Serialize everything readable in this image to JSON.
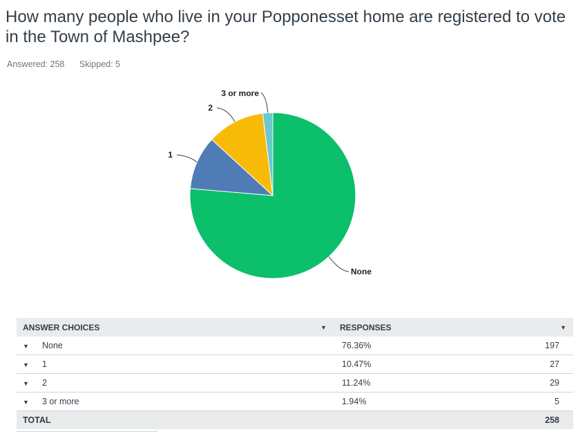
{
  "question": {
    "title": "How many people who live in your Popponesset home are registered to vote in the Town of Mashpee?",
    "answered_label": "Answered: 258",
    "skipped_label": "Skipped: 5"
  },
  "table": {
    "col_choices": "ANSWER CHOICES",
    "col_responses": "RESPONSES",
    "rows": [
      {
        "choice": "None",
        "percent": "76.36%",
        "count": "197"
      },
      {
        "choice": "1",
        "percent": "10.47%",
        "count": "27"
      },
      {
        "choice": "2",
        "percent": "11.24%",
        "count": "29"
      },
      {
        "choice": "3 or more",
        "percent": "1.94%",
        "count": "5"
      }
    ],
    "total_label": "TOTAL",
    "total_count": "258"
  },
  "chart_data": {
    "type": "pie",
    "categories": [
      "None",
      "1",
      "2",
      "3 or more"
    ],
    "values": [
      76.36,
      10.47,
      11.24,
      1.94
    ],
    "colors": [
      "#0bbf6b",
      "#507cb6",
      "#f7bb07",
      "#6bc8cd"
    ],
    "title": ""
  }
}
